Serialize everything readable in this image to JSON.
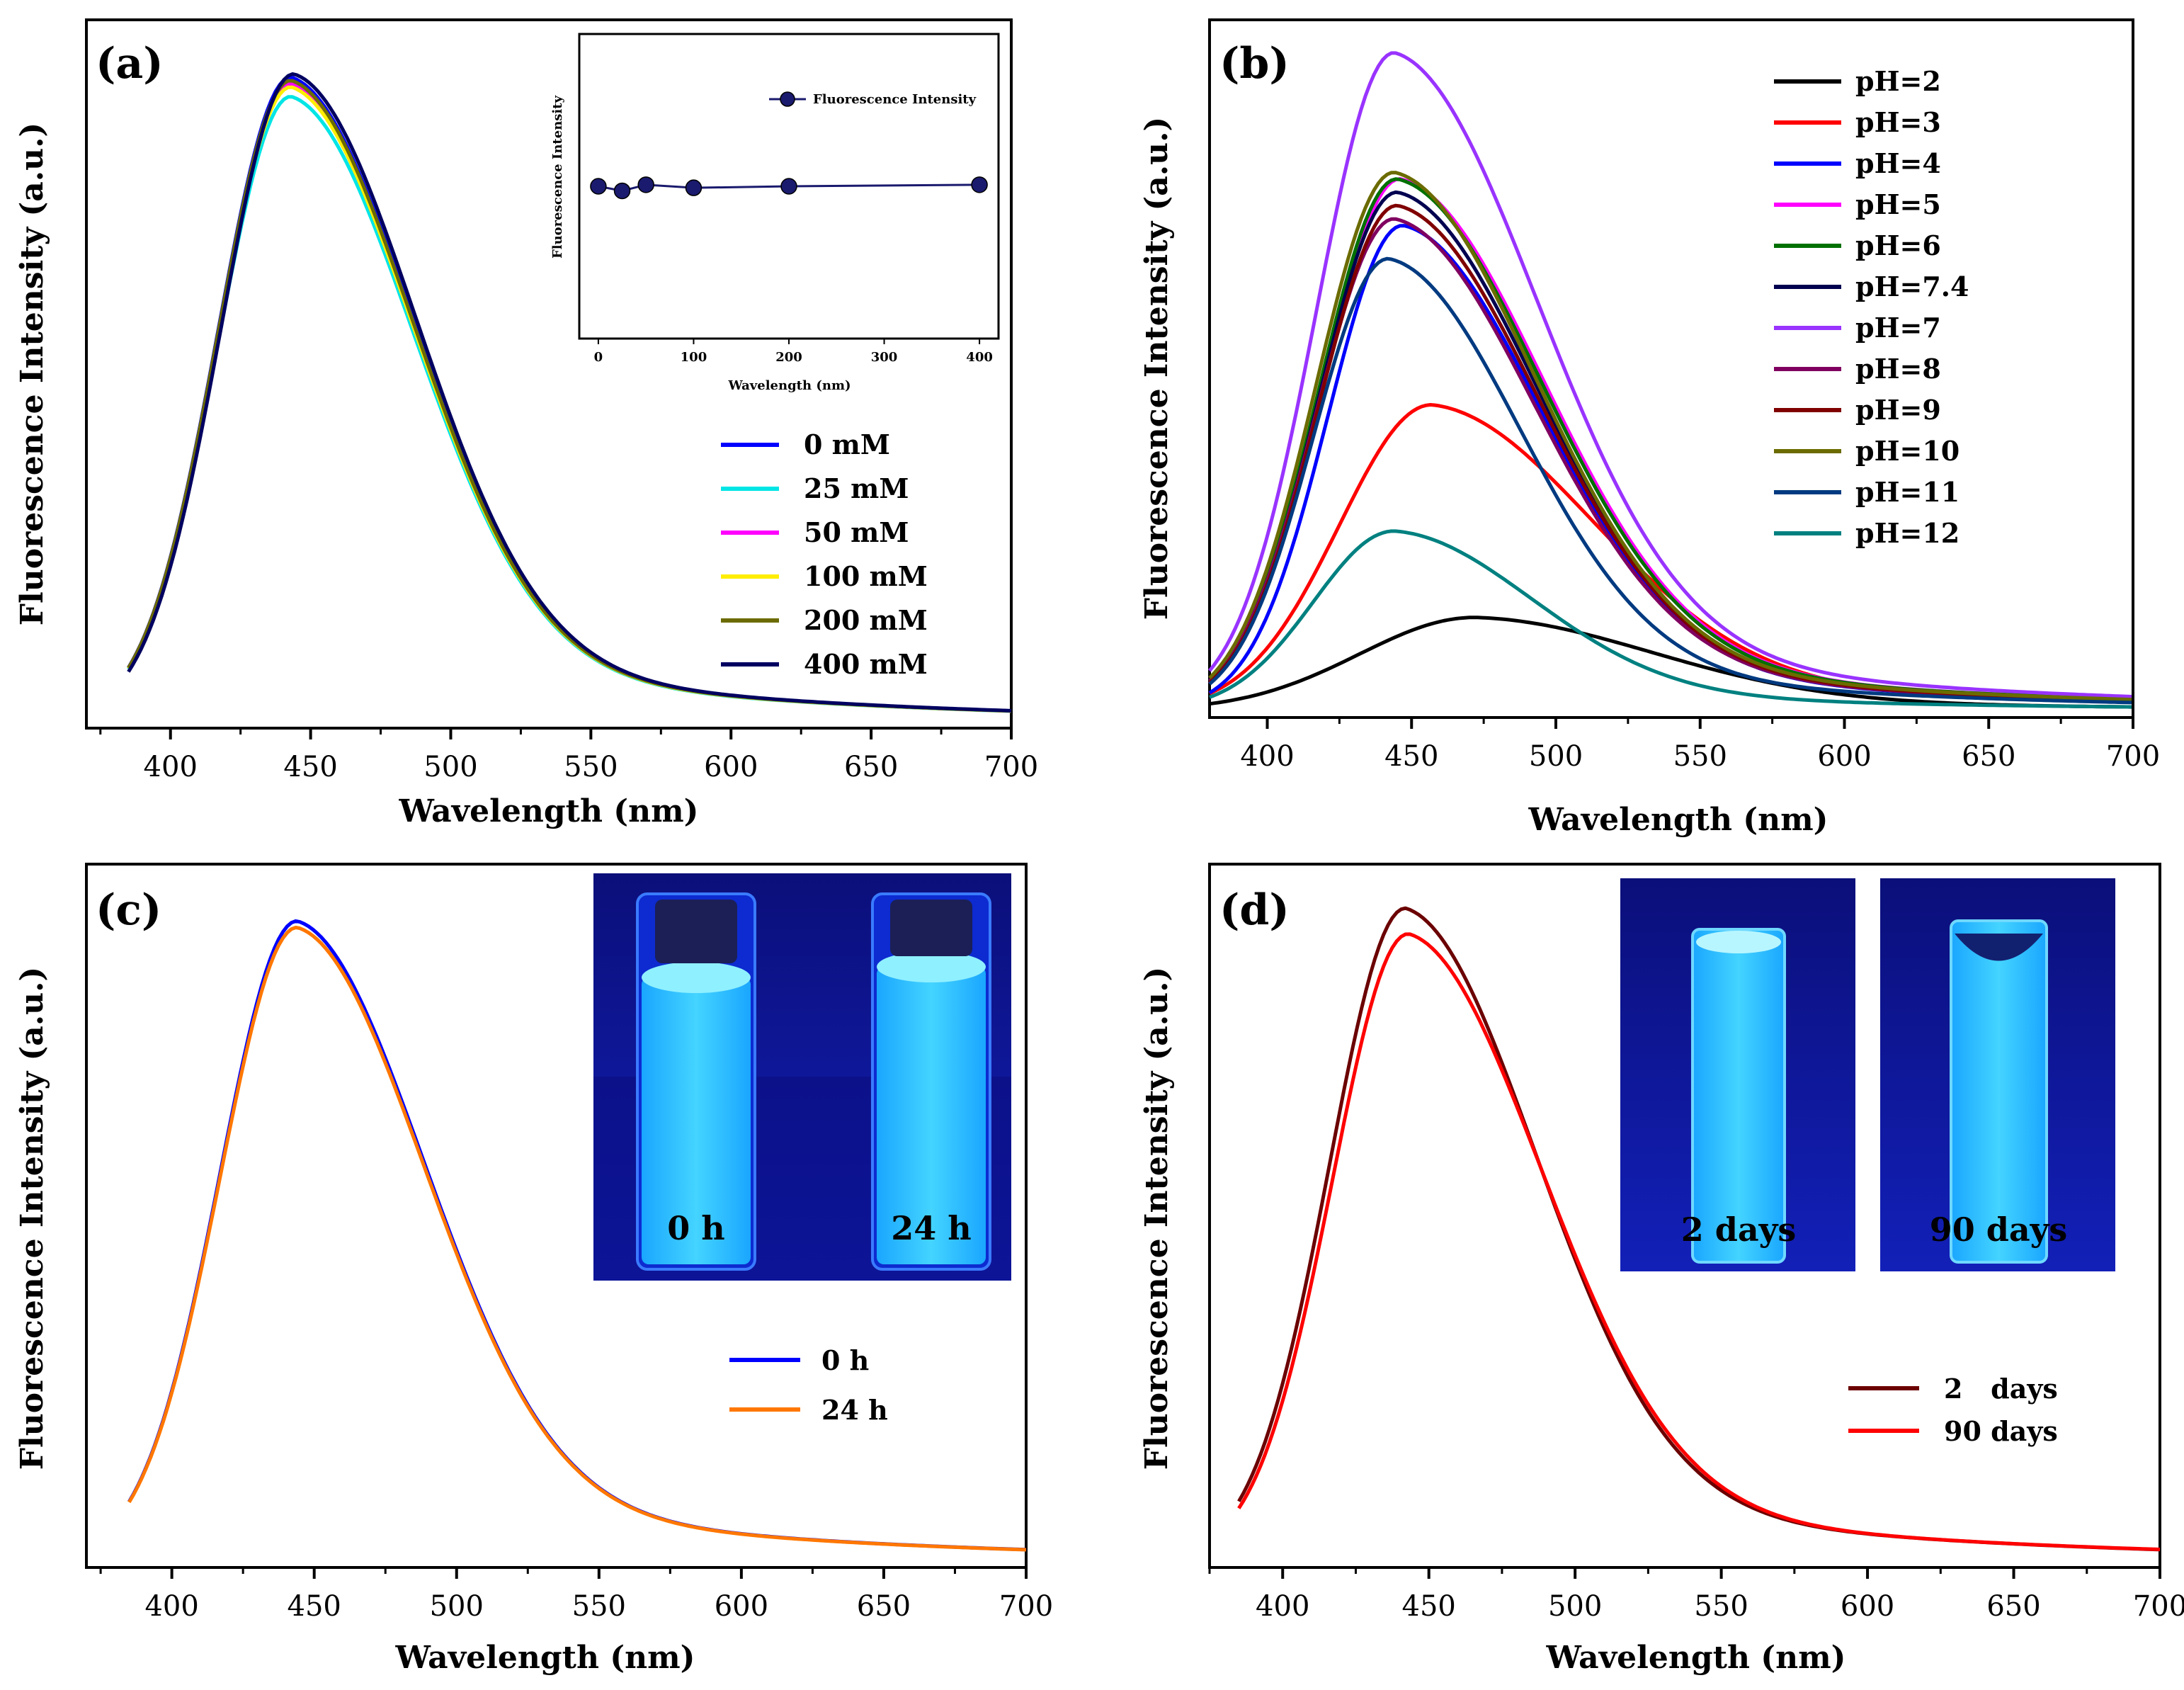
{
  "chart_data": [
    {
      "panel": "(a)",
      "type": "line",
      "xlabel": "Wavelength (nm)",
      "ylabel": "Fluorescence Intensity (a.u.)",
      "xlim": [
        370,
        700
      ],
      "xticks": [
        400,
        450,
        500,
        550,
        600,
        650,
        700
      ],
      "ylim": [
        0,
        1.1
      ],
      "series": [
        {
          "name": "0 mM",
          "color": "#0000ff",
          "peak": 1.0,
          "center": 443,
          "wl": 26,
          "wr": 44,
          "offset": 0.0
        },
        {
          "name": "25 mM",
          "color": "#00e5e5",
          "peak": 0.97,
          "center": 443,
          "wl": 26,
          "wr": 44,
          "offset": 0.0
        },
        {
          "name": "50 mM",
          "color": "#ff00ff",
          "peak": 0.99,
          "center": 443,
          "wl": 26,
          "wr": 44,
          "offset": 0.0
        },
        {
          "name": "100 mM",
          "color": "#ffee00",
          "peak": 0.985,
          "center": 443,
          "wl": 26,
          "wr": 44,
          "offset": 0.0
        },
        {
          "name": "200 mM",
          "color": "#6b6b00",
          "peak": 0.995,
          "center": 443,
          "wl": 26,
          "wr": 44,
          "offset": 0.0
        },
        {
          "name": "400 mM",
          "color": "#000060",
          "peak": 1.005,
          "center": 444,
          "wl": 26,
          "wr": 44,
          "offset": 0.0
        }
      ],
      "inset": {
        "type": "scatter",
        "legend": "Fluorescence Intensity",
        "xlabel": "Wavelength (nm)",
        "ylabel": "Fluorescence Intensity",
        "xticks": [
          0,
          100,
          200,
          300,
          400
        ],
        "xlim": [
          -20,
          420
        ],
        "ylim": [
          0,
          2
        ],
        "x": [
          0,
          25,
          50,
          100,
          200,
          400
        ],
        "y": [
          1.0,
          0.97,
          1.01,
          0.99,
          1.0,
          1.01
        ],
        "color": "#1a1a6e"
      }
    },
    {
      "panel": "(b)",
      "type": "line",
      "xlabel": "Wavelength (nm)",
      "ylabel": "Fluorescence Intensity (a.u.)",
      "xlim": [
        380,
        700
      ],
      "xticks": [
        400,
        450,
        500,
        550,
        600,
        650,
        700
      ],
      "ylim": [
        0,
        1.05
      ],
      "series": [
        {
          "name": "pH=2",
          "color": "#000000",
          "peak": 0.14,
          "center": 472,
          "wl": 40,
          "wr": 62
        },
        {
          "name": "pH=3",
          "color": "#ff0000",
          "peak": 0.46,
          "center": 457,
          "wl": 32,
          "wr": 56
        },
        {
          "name": "pH=4",
          "color": "#0000ff",
          "peak": 0.73,
          "center": 447,
          "wl": 26,
          "wr": 48
        },
        {
          "name": "pH=5",
          "color": "#ff00ff",
          "peak": 0.8,
          "center": 446,
          "wl": 27,
          "wr": 50
        },
        {
          "name": "pH=6",
          "color": "#007000",
          "peak": 0.8,
          "center": 445,
          "wl": 27,
          "wr": 50
        },
        {
          "name": "pH=7.4",
          "color": "#000050",
          "peak": 0.78,
          "center": 445,
          "wl": 27,
          "wr": 49
        },
        {
          "name": "pH=7",
          "color": "#9933ff",
          "peak": 0.99,
          "center": 444,
          "wl": 27,
          "wr": 50
        },
        {
          "name": "pH=8",
          "color": "#800060",
          "peak": 0.74,
          "center": 444,
          "wl": 27,
          "wr": 49
        },
        {
          "name": "pH=9",
          "color": "#800000",
          "peak": 0.76,
          "center": 445,
          "wl": 27,
          "wr": 49
        },
        {
          "name": "pH=10",
          "color": "#6b6b00",
          "peak": 0.81,
          "center": 444,
          "wl": 27,
          "wr": 49
        },
        {
          "name": "pH=11",
          "color": "#003a80",
          "peak": 0.68,
          "center": 442,
          "wl": 26,
          "wr": 46
        },
        {
          "name": "pH=12",
          "color": "#008080",
          "peak": 0.27,
          "center": 444,
          "wl": 28,
          "wr": 48
        }
      ]
    },
    {
      "panel": "(c)",
      "type": "line",
      "xlabel": "Wavelength (nm)",
      "ylabel": "Fluorescence Intensity (a.u.)",
      "xlim": [
        370,
        700
      ],
      "xticks": [
        400,
        450,
        500,
        550,
        600,
        650,
        700
      ],
      "ylim": [
        0,
        1.1
      ],
      "series": [
        {
          "name": "0 h",
          "color": "#0000ff",
          "peak": 1.0,
          "center": 444,
          "wl": 27,
          "wr": 45
        },
        {
          "name": "24 h",
          "color": "#ff7700",
          "peak": 0.99,
          "center": 444,
          "wl": 27,
          "wr": 45
        }
      ],
      "photo": {
        "labels": [
          "0 h",
          "24 h"
        ]
      }
    },
    {
      "panel": "(d)",
      "type": "line",
      "xlabel": "Wavelength (nm)",
      "ylabel": "Fluorescence Intensity (a.u.)",
      "xlim": [
        375,
        700
      ],
      "xticks": [
        400,
        450,
        500,
        550,
        600,
        650,
        700
      ],
      "ylim": [
        0,
        1.1
      ],
      "series": [
        {
          "name": "2   days",
          "color": "#6b0000",
          "peak": 1.02,
          "center": 442,
          "wl": 26,
          "wr": 45
        },
        {
          "name": "90 days",
          "color": "#ff0000",
          "peak": 0.98,
          "center": 443,
          "wl": 26,
          "wr": 46
        }
      ],
      "photo": {
        "labels": [
          "2 days",
          "90 days"
        ]
      }
    }
  ]
}
